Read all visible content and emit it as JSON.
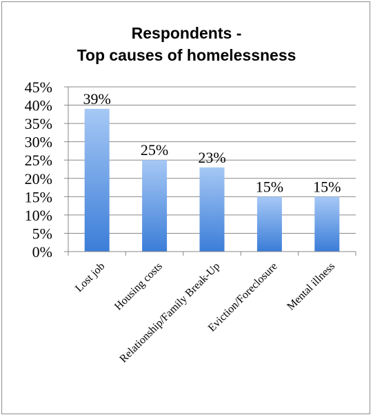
{
  "chart_data": {
    "type": "bar",
    "title_line1": "Respondents -",
    "title_line2": "Top causes of homelessness",
    "categories": [
      "Lost job",
      "Housing costs",
      "Relationship/Family Break-Up",
      "Eviction/Foreclosure",
      "Mental illness"
    ],
    "values": [
      39,
      25,
      23,
      15,
      15
    ],
    "data_labels": [
      "39%",
      "25%",
      "23%",
      "15%",
      "15%"
    ],
    "yticks": [
      "0%",
      "5%",
      "10%",
      "15%",
      "20%",
      "25%",
      "30%",
      "35%",
      "40%",
      "45%"
    ],
    "ylim": [
      0,
      45
    ],
    "grid": true,
    "legend": "none",
    "colors": {
      "bar_top": "#a6c8f5",
      "bar_bottom": "#3b7dd8",
      "grid": "#878787",
      "axis": "#878787"
    }
  }
}
